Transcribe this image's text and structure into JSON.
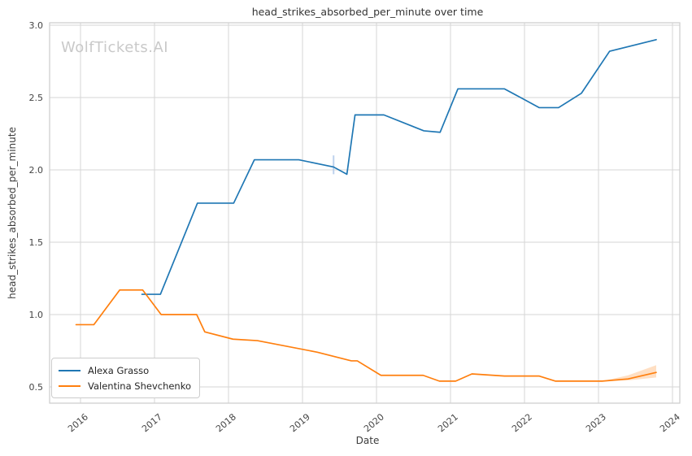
{
  "watermark": "WolfTickets.AI",
  "chart_data": {
    "type": "line",
    "title": "head_strikes_absorbed_per_minute over time",
    "xlabel": "Date",
    "ylabel": "head_strikes_absorbed_per_minute",
    "x_ticks": [
      2016,
      2017,
      2018,
      2019,
      2020,
      2021,
      2022,
      2023,
      2024
    ],
    "x_tick_labels": [
      "2016",
      "2017",
      "2018",
      "2019",
      "2020",
      "2021",
      "2022",
      "2023",
      "2024"
    ],
    "y_ticks": [
      0.5,
      1.0,
      1.5,
      2.0,
      2.5,
      3.0
    ],
    "y_tick_labels": [
      "0.5",
      "1.0",
      "1.5",
      "2.0",
      "2.5",
      "3.0"
    ],
    "xlim": [
      2015.58,
      2024.1
    ],
    "ylim": [
      0.39,
      3.02
    ],
    "grid": true,
    "legend_position": "lower left",
    "colors": {
      "grid": "#d6d6d6",
      "frame": "#cccccc",
      "tick_text": "#444444",
      "title_text": "#333333",
      "watermark_text": "#c9c9c9"
    },
    "series": [
      {
        "name": "Alexa Grasso",
        "color": "#1f77b4",
        "points": [
          [
            2016.83,
            1.14
          ],
          [
            2017.08,
            1.14
          ],
          [
            2017.58,
            1.77
          ],
          [
            2018.07,
            1.77
          ],
          [
            2018.35,
            2.07
          ],
          [
            2018.95,
            2.07
          ],
          [
            2019.42,
            2.02
          ],
          [
            2019.6,
            1.97
          ],
          [
            2019.71,
            2.38
          ],
          [
            2020.1,
            2.38
          ],
          [
            2020.64,
            2.27
          ],
          [
            2020.86,
            2.26
          ],
          [
            2021.1,
            2.56
          ],
          [
            2021.73,
            2.56
          ],
          [
            2022.2,
            2.43
          ],
          [
            2022.46,
            2.43
          ],
          [
            2022.77,
            2.53
          ],
          [
            2023.15,
            2.82
          ],
          [
            2023.78,
            2.9
          ]
        ],
        "error_bar": {
          "x": 2019.42,
          "low": 1.97,
          "high": 2.1,
          "color": "#aec7e8"
        }
      },
      {
        "name": "Valentina Shevchenko",
        "color": "#ff7f0e",
        "points": [
          [
            2015.94,
            0.93
          ],
          [
            2016.18,
            0.93
          ],
          [
            2016.53,
            1.17
          ],
          [
            2016.84,
            1.17
          ],
          [
            2017.09,
            1.0
          ],
          [
            2017.57,
            1.0
          ],
          [
            2017.68,
            0.88
          ],
          [
            2018.06,
            0.83
          ],
          [
            2018.39,
            0.82
          ],
          [
            2019.2,
            0.74
          ],
          [
            2019.66,
            0.68
          ],
          [
            2019.74,
            0.68
          ],
          [
            2020.06,
            0.58
          ],
          [
            2020.63,
            0.58
          ],
          [
            2020.85,
            0.54
          ],
          [
            2021.07,
            0.54
          ],
          [
            2021.29,
            0.59
          ],
          [
            2021.73,
            0.575
          ],
          [
            2022.2,
            0.575
          ],
          [
            2022.42,
            0.54
          ],
          [
            2023.05,
            0.54
          ],
          [
            2023.4,
            0.555
          ],
          [
            2023.78,
            0.6
          ]
        ],
        "band": {
          "x": [
            2023.05,
            2023.4,
            2023.78
          ],
          "upper": [
            0.54,
            0.58,
            0.65
          ],
          "lower": [
            0.54,
            0.545,
            0.565
          ],
          "opacity": 0.25
        }
      }
    ]
  }
}
